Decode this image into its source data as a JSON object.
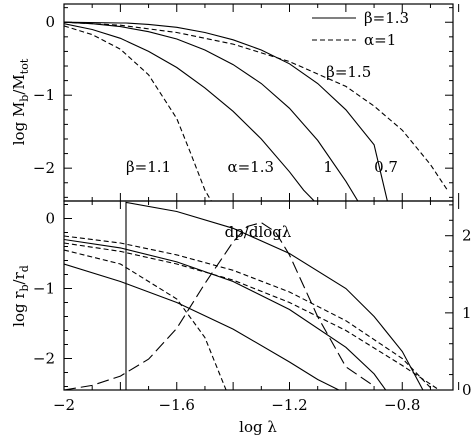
{
  "chart_data": [
    {
      "type": "line",
      "panel": "top",
      "ylabel": "log M_b/M_tot",
      "xlim": [
        -2.0,
        -0.62
      ],
      "ylim": [
        -2.45,
        0.25
      ],
      "yticks": [
        0,
        -1,
        -2
      ],
      "ytick_labels": [
        "0",
        "−1",
        "−2"
      ],
      "xtick_labels": [],
      "legend": {
        "placement": "top-right",
        "entries": [
          {
            "label": "β=1.3",
            "style": "solid"
          },
          {
            "label": "α=1",
            "style": "dashed"
          }
        ]
      },
      "annotations": [
        {
          "text": "β=1.5",
          "x": -1.07,
          "y": -0.75
        },
        {
          "text": "β=1.1",
          "x": -1.78,
          "y": -2.05
        },
        {
          "text": "α=1.3",
          "x": -1.42,
          "y": -2.05
        },
        {
          "text": "1",
          "x": -1.08,
          "y": -2.05
        },
        {
          "text": "0.7",
          "x": -0.9,
          "y": -2.05
        }
      ],
      "series": [
        {
          "style": "solid",
          "x": [
            -2.0,
            -1.9,
            -1.8,
            -1.7,
            -1.6,
            -1.5,
            -1.4,
            -1.3,
            -1.2,
            -1.1,
            -1.0,
            -0.95
          ],
          "y": [
            0.0,
            -0.02,
            -0.06,
            -0.13,
            -0.23,
            -0.38,
            -0.58,
            -0.84,
            -1.18,
            -1.62,
            -2.18,
            -2.5
          ]
        },
        {
          "style": "solid",
          "x": [
            -2.0,
            -1.8,
            -1.78,
            -1.7,
            -1.6,
            -1.5,
            -1.4,
            -1.3,
            -1.2,
            -1.1,
            -1.0,
            -0.9,
            -0.85
          ],
          "y": [
            0.0,
            -0.01,
            -0.01,
            -0.03,
            -0.07,
            -0.14,
            -0.24,
            -0.38,
            -0.57,
            -0.84,
            -1.2,
            -1.68,
            -2.5
          ]
        },
        {
          "style": "solid",
          "x": [
            -2.0,
            -1.9,
            -1.8,
            -1.7,
            -1.6,
            -1.5,
            -1.4,
            -1.3,
            -1.2,
            -1.15,
            -1.1
          ],
          "y": [
            -0.02,
            -0.1,
            -0.22,
            -0.4,
            -0.62,
            -0.9,
            -1.22,
            -1.6,
            -2.05,
            -2.3,
            -2.5
          ]
        },
        {
          "style": "dashed",
          "x": [
            -2.0,
            -1.9,
            -1.8,
            -1.7,
            -1.6,
            -1.55,
            -1.5,
            -1.47
          ],
          "y": [
            -0.05,
            -0.17,
            -0.37,
            -0.72,
            -1.32,
            -1.8,
            -2.3,
            -2.5
          ]
        },
        {
          "style": "dashed",
          "x": [
            -2.0,
            -1.8,
            -1.6,
            -1.4,
            -1.2,
            -1.0,
            -0.9,
            -0.8,
            -0.7,
            -0.64
          ],
          "y": [
            0.0,
            -0.04,
            -0.14,
            -0.3,
            -0.54,
            -0.88,
            -1.15,
            -1.48,
            -1.95,
            -2.3
          ]
        }
      ]
    },
    {
      "type": "line",
      "panel": "bottom",
      "xlabel": "log λ",
      "ylabel": "log r_b/r_d",
      "y2label": "dp/dlogλ",
      "xlim": [
        -2.0,
        -0.62
      ],
      "ylim": [
        -2.45,
        0.25
      ],
      "y2lim": [
        0,
        2.45
      ],
      "xticks": [
        -2.0,
        -1.6,
        -1.2,
        -0.8
      ],
      "xtick_labels": [
        "−2",
        "−1.6",
        "−1.2",
        "−0.8"
      ],
      "yticks": [
        0,
        -1,
        -2
      ],
      "ytick_labels": [
        "0",
        "−1",
        "−2"
      ],
      "y2ticks": [
        0,
        1,
        2
      ],
      "y2tick_labels": [
        "0",
        "1",
        "2"
      ],
      "series": [
        {
          "style": "solid",
          "x": [
            -1.78,
            -1.78,
            -1.6,
            -1.4,
            -1.2,
            -1.0,
            -0.9,
            -0.8,
            -0.72
          ],
          "y": [
            -2.5,
            0.23,
            0.1,
            -0.14,
            -0.5,
            -1.0,
            -1.4,
            -1.9,
            -2.5
          ]
        },
        {
          "style": "solid",
          "x": [
            -2.0,
            -1.8,
            -1.6,
            -1.4,
            -1.2,
            -1.0,
            -0.9,
            -0.85
          ],
          "y": [
            -0.3,
            -0.42,
            -0.62,
            -0.9,
            -1.3,
            -1.84,
            -2.22,
            -2.5
          ]
        },
        {
          "style": "solid",
          "x": [
            -2.0,
            -1.8,
            -1.6,
            -1.4,
            -1.2,
            -1.1,
            -1.0,
            -0.95
          ],
          "y": [
            -0.65,
            -0.9,
            -1.2,
            -1.58,
            -2.05,
            -2.3,
            -2.5,
            -2.5
          ]
        },
        {
          "style": "dashed",
          "x": [
            -2.0,
            -1.8,
            -1.6,
            -1.4,
            -1.2,
            -1.0,
            -0.8,
            -0.68
          ],
          "y": [
            -0.25,
            -0.35,
            -0.52,
            -0.74,
            -1.05,
            -1.46,
            -2.0,
            -2.5
          ]
        },
        {
          "style": "dashed",
          "x": [
            -2.0,
            -1.8,
            -1.6,
            -1.4,
            -1.2,
            -1.0,
            -0.8,
            -0.65
          ],
          "y": [
            -0.35,
            -0.47,
            -0.65,
            -0.88,
            -1.2,
            -1.6,
            -2.1,
            -2.5
          ]
        },
        {
          "style": "dashed",
          "x": [
            -2.0,
            -1.8,
            -1.6,
            -1.5,
            -1.45,
            -1.42
          ],
          "y": [
            -0.45,
            -0.65,
            -1.15,
            -1.7,
            -2.2,
            -2.5
          ]
        },
        {
          "style": "longdash",
          "axis": "right",
          "x": [
            -2.0,
            -1.9,
            -1.8,
            -1.7,
            -1.6,
            -1.5,
            -1.4,
            -1.35,
            -1.3,
            -1.25,
            -1.2,
            -1.1,
            -1.0,
            -0.9
          ],
          "y": [
            0.0,
            0.06,
            0.18,
            0.4,
            0.8,
            1.38,
            1.92,
            2.12,
            2.17,
            2.05,
            1.75,
            0.95,
            0.3,
            0.05
          ]
        }
      ]
    }
  ]
}
